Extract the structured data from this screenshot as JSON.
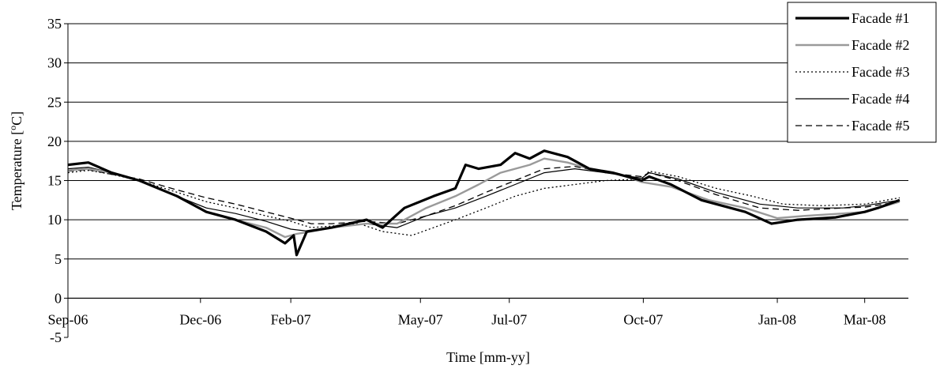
{
  "chart_data": {
    "type": "line",
    "title": "",
    "xlabel": "Time [mm-yy]",
    "ylabel_main": "Temperature [",
    "ylabel_sup": "o",
    "ylabel_end": "C]",
    "ylim": [
      -5,
      35
    ],
    "yticks": [
      -5,
      0,
      5,
      10,
      15,
      20,
      25,
      30,
      35
    ],
    "xlim": [
      "2006-09-01",
      "2008-03-31"
    ],
    "xticks": [
      {
        "label": "Sep-06",
        "date": "2006-09-01"
      },
      {
        "label": "Dec-06",
        "date": "2006-12-01"
      },
      {
        "label": "Feb-07",
        "date": "2007-02-01"
      },
      {
        "label": "May-07",
        "date": "2007-05-01"
      },
      {
        "label": "Jul-07",
        "date": "2007-07-01"
      },
      {
        "label": "Oct-07",
        "date": "2007-10-01"
      },
      {
        "label": "Jan-08",
        "date": "2008-01-01"
      },
      {
        "label": "Mar-08",
        "date": "2008-03-01"
      }
    ],
    "grid": "horizontal",
    "legend_position": "top-right",
    "series": [
      {
        "name": "Facade #1",
        "style": "thick-solid",
        "color": "#000000",
        "points": [
          [
            "2006-09-01",
            17.0
          ],
          [
            "2006-09-15",
            17.3
          ],
          [
            "2006-10-01",
            16.0
          ],
          [
            "2006-10-20",
            15.0
          ],
          [
            "2006-11-15",
            13.0
          ],
          [
            "2006-12-05",
            11.0
          ],
          [
            "2006-12-25",
            10.0
          ],
          [
            "2007-01-15",
            8.5
          ],
          [
            "2007-01-28",
            7.0
          ],
          [
            "2007-02-03",
            8.0
          ],
          [
            "2007-02-05",
            5.5
          ],
          [
            "2007-02-12",
            8.5
          ],
          [
            "2007-03-01",
            9.0
          ],
          [
            "2007-03-25",
            10.0
          ],
          [
            "2007-04-05",
            9.0
          ],
          [
            "2007-04-20",
            11.5
          ],
          [
            "2007-05-10",
            13.0
          ],
          [
            "2007-05-25",
            14.0
          ],
          [
            "2007-06-01",
            17.0
          ],
          [
            "2007-06-10",
            16.5
          ],
          [
            "2007-06-25",
            17.0
          ],
          [
            "2007-07-05",
            18.5
          ],
          [
            "2007-07-15",
            17.8
          ],
          [
            "2007-07-25",
            18.8
          ],
          [
            "2007-08-10",
            18.0
          ],
          [
            "2007-08-25",
            16.5
          ],
          [
            "2007-09-10",
            16.0
          ],
          [
            "2007-09-30",
            15.0
          ],
          [
            "2007-10-05",
            15.5
          ],
          [
            "2007-10-20",
            14.5
          ],
          [
            "2007-11-10",
            12.5
          ],
          [
            "2007-12-10",
            11.0
          ],
          [
            "2007-12-28",
            9.5
          ],
          [
            "2008-01-15",
            10.0
          ],
          [
            "2008-02-10",
            10.3
          ],
          [
            "2008-03-01",
            11.0
          ],
          [
            "2008-03-10",
            11.5
          ],
          [
            "2008-03-25",
            12.5
          ]
        ]
      },
      {
        "name": "Facade #2",
        "style": "gray-solid",
        "color": "#9a9a9a",
        "points": [
          [
            "2006-09-01",
            16.3
          ],
          [
            "2006-09-15",
            16.5
          ],
          [
            "2006-10-01",
            16.0
          ],
          [
            "2006-10-20",
            15.0
          ],
          [
            "2006-11-15",
            13.0
          ],
          [
            "2006-12-05",
            11.0
          ],
          [
            "2006-12-25",
            10.0
          ],
          [
            "2007-01-15",
            9.0
          ],
          [
            "2007-01-28",
            7.8
          ],
          [
            "2007-02-05",
            8.2
          ],
          [
            "2007-02-15",
            8.5
          ],
          [
            "2007-03-01",
            9.0
          ],
          [
            "2007-03-25",
            9.5
          ],
          [
            "2007-04-15",
            9.5
          ],
          [
            "2007-05-05",
            11.5
          ],
          [
            "2007-05-25",
            13.0
          ],
          [
            "2007-06-10",
            14.5
          ],
          [
            "2007-06-25",
            16.0
          ],
          [
            "2007-07-15",
            17.0
          ],
          [
            "2007-07-25",
            17.8
          ],
          [
            "2007-08-10",
            17.3
          ],
          [
            "2007-08-25",
            16.5
          ],
          [
            "2007-09-15",
            15.8
          ],
          [
            "2007-09-30",
            14.8
          ],
          [
            "2007-10-20",
            14.2
          ],
          [
            "2007-11-15",
            12.5
          ],
          [
            "2007-12-10",
            11.5
          ],
          [
            "2008-01-01",
            10.2
          ],
          [
            "2008-01-20",
            10.5
          ],
          [
            "2008-02-15",
            10.8
          ],
          [
            "2008-03-01",
            11.0
          ],
          [
            "2008-03-25",
            12.3
          ]
        ]
      },
      {
        "name": "Facade #3",
        "style": "dotted",
        "color": "#000000",
        "points": [
          [
            "2006-09-01",
            16.0
          ],
          [
            "2006-09-15",
            16.3
          ],
          [
            "2006-10-01",
            15.8
          ],
          [
            "2006-10-20",
            15.0
          ],
          [
            "2006-11-15",
            13.5
          ],
          [
            "2006-12-05",
            12.3
          ],
          [
            "2006-12-25",
            11.5
          ],
          [
            "2007-01-15",
            10.5
          ],
          [
            "2007-02-01",
            9.8
          ],
          [
            "2007-02-15",
            9.0
          ],
          [
            "2007-03-01",
            9.2
          ],
          [
            "2007-03-20",
            9.5
          ],
          [
            "2007-04-05",
            8.5
          ],
          [
            "2007-04-25",
            8.0
          ],
          [
            "2007-05-10",
            9.0
          ],
          [
            "2007-05-25",
            10.0
          ],
          [
            "2007-06-15",
            11.5
          ],
          [
            "2007-07-05",
            13.0
          ],
          [
            "2007-07-25",
            14.0
          ],
          [
            "2007-08-15",
            14.5
          ],
          [
            "2007-09-05",
            15.0
          ],
          [
            "2007-09-30",
            15.2
          ],
          [
            "2007-10-05",
            16.2
          ],
          [
            "2007-10-25",
            15.5
          ],
          [
            "2007-11-20",
            14.0
          ],
          [
            "2007-12-15",
            13.0
          ],
          [
            "2008-01-05",
            12.0
          ],
          [
            "2008-02-01",
            11.8
          ],
          [
            "2008-03-01",
            12.0
          ],
          [
            "2008-03-25",
            12.8
          ]
        ]
      },
      {
        "name": "Facade #4",
        "style": "thin-solid",
        "color": "#000000",
        "points": [
          [
            "2006-09-01",
            16.5
          ],
          [
            "2006-09-15",
            16.7
          ],
          [
            "2006-10-01",
            16.0
          ],
          [
            "2006-10-20",
            15.0
          ],
          [
            "2006-11-15",
            13.0
          ],
          [
            "2006-12-05",
            11.5
          ],
          [
            "2006-12-25",
            10.8
          ],
          [
            "2007-01-15",
            9.8
          ],
          [
            "2007-02-01",
            8.8
          ],
          [
            "2007-02-15",
            8.5
          ],
          [
            "2007-03-01",
            9.0
          ],
          [
            "2007-03-25",
            9.5
          ],
          [
            "2007-04-15",
            9.0
          ],
          [
            "2007-05-05",
            10.5
          ],
          [
            "2007-05-25",
            11.5
          ],
          [
            "2007-06-15",
            13.0
          ],
          [
            "2007-07-05",
            14.5
          ],
          [
            "2007-07-25",
            16.0
          ],
          [
            "2007-08-15",
            16.5
          ],
          [
            "2007-09-05",
            16.0
          ],
          [
            "2007-09-30",
            15.3
          ],
          [
            "2007-10-05",
            16.0
          ],
          [
            "2007-10-25",
            15.2
          ],
          [
            "2007-11-20",
            13.5
          ],
          [
            "2007-12-20",
            12.0
          ],
          [
            "2008-01-15",
            11.5
          ],
          [
            "2008-02-15",
            11.5
          ],
          [
            "2008-03-01",
            11.8
          ],
          [
            "2008-03-25",
            12.5
          ]
        ]
      },
      {
        "name": "Facade #5",
        "style": "dashed",
        "color": "#000000",
        "points": [
          [
            "2006-09-01",
            16.2
          ],
          [
            "2006-09-15",
            16.4
          ],
          [
            "2006-10-01",
            15.8
          ],
          [
            "2006-10-20",
            15.2
          ],
          [
            "2006-11-15",
            13.8
          ],
          [
            "2006-12-05",
            12.8
          ],
          [
            "2006-12-25",
            12.0
          ],
          [
            "2007-01-15",
            11.0
          ],
          [
            "2007-02-01",
            10.2
          ],
          [
            "2007-02-15",
            9.5
          ],
          [
            "2007-03-01",
            9.5
          ],
          [
            "2007-03-25",
            9.8
          ],
          [
            "2007-04-15",
            9.5
          ],
          [
            "2007-05-05",
            10.5
          ],
          [
            "2007-05-25",
            11.8
          ],
          [
            "2007-06-15",
            13.5
          ],
          [
            "2007-07-05",
            15.0
          ],
          [
            "2007-07-25",
            16.5
          ],
          [
            "2007-08-15",
            16.8
          ],
          [
            "2007-09-05",
            16.0
          ],
          [
            "2007-09-30",
            15.5
          ],
          [
            "2007-10-05",
            16.0
          ],
          [
            "2007-10-25",
            15.0
          ],
          [
            "2007-11-20",
            13.2
          ],
          [
            "2007-12-20",
            11.5
          ],
          [
            "2008-01-15",
            11.2
          ],
          [
            "2008-02-15",
            11.5
          ],
          [
            "2008-03-01",
            11.6
          ],
          [
            "2008-03-25",
            12.3
          ]
        ]
      }
    ]
  }
}
